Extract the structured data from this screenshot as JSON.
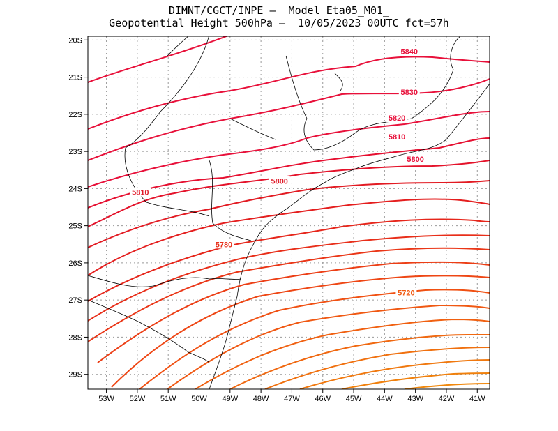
{
  "header": {
    "line1": "DIMNT/CGCT/INPE –  Model Eta05_M01_",
    "line2": "Geopotential Height 500hPa –  10/05/2023 00UTC fct=57h"
  },
  "map": {
    "lon_range": [
      -53.6,
      -40.6
    ],
    "lat_range": [
      -29.4,
      -19.9
    ],
    "lon_ticks": [
      {
        "lon": -53,
        "label": "53W"
      },
      {
        "lon": -52,
        "label": "52W"
      },
      {
        "lon": -51,
        "label": "51W"
      },
      {
        "lon": -50,
        "label": "50W"
      },
      {
        "lon": -49,
        "label": "49W"
      },
      {
        "lon": -48,
        "label": "48W"
      },
      {
        "lon": -47,
        "label": "47W"
      },
      {
        "lon": -46,
        "label": "46W"
      },
      {
        "lon": -45,
        "label": "45W"
      },
      {
        "lon": -44,
        "label": "44W"
      },
      {
        "lon": -43,
        "label": "43W"
      },
      {
        "lon": -42,
        "label": "42W"
      },
      {
        "lon": -41,
        "label": "41W"
      }
    ],
    "lat_ticks": [
      {
        "lat": -20,
        "label": "20S"
      },
      {
        "lat": -21,
        "label": "21S"
      },
      {
        "lat": -22,
        "label": "22S"
      },
      {
        "lat": -23,
        "label": "23S"
      },
      {
        "lat": -24,
        "label": "24S"
      },
      {
        "lat": -25,
        "label": "25S"
      },
      {
        "lat": -26,
        "label": "26S"
      },
      {
        "lat": -27,
        "label": "27S"
      },
      {
        "lat": -28,
        "label": "28S"
      },
      {
        "lat": -29,
        "label": "29S"
      }
    ],
    "grid": "dotted",
    "contour_labels": [
      {
        "text": "5840",
        "lon": -43.2,
        "lat": -20.3,
        "color": "#e8103a"
      },
      {
        "text": "5830",
        "lon": -43.2,
        "lat": -21.4,
        "color": "#e8103a"
      },
      {
        "text": "5820",
        "lon": -43.6,
        "lat": -22.1,
        "color": "#e8103a"
      },
      {
        "text": "5810",
        "lon": -43.6,
        "lat": -22.6,
        "color": "#e8103a"
      },
      {
        "text": "5800",
        "lon": -43.0,
        "lat": -23.2,
        "color": "#e8103a"
      },
      {
        "text": "5810",
        "lon": -51.9,
        "lat": -24.1,
        "color": "#e01a28"
      },
      {
        "text": "5800",
        "lon": -47.4,
        "lat": -23.8,
        "color": "#e01a28"
      },
      {
        "text": "5780",
        "lon": -49.2,
        "lat": -25.5,
        "color": "#e8301a"
      },
      {
        "text": "5720",
        "lon": -43.3,
        "lat": -26.8,
        "color": "#f05a12"
      }
    ]
  },
  "colors": {
    "red_contour": "#e8103a",
    "orange_contour": "#f07010",
    "border": "#000000",
    "grid": "#888888"
  }
}
